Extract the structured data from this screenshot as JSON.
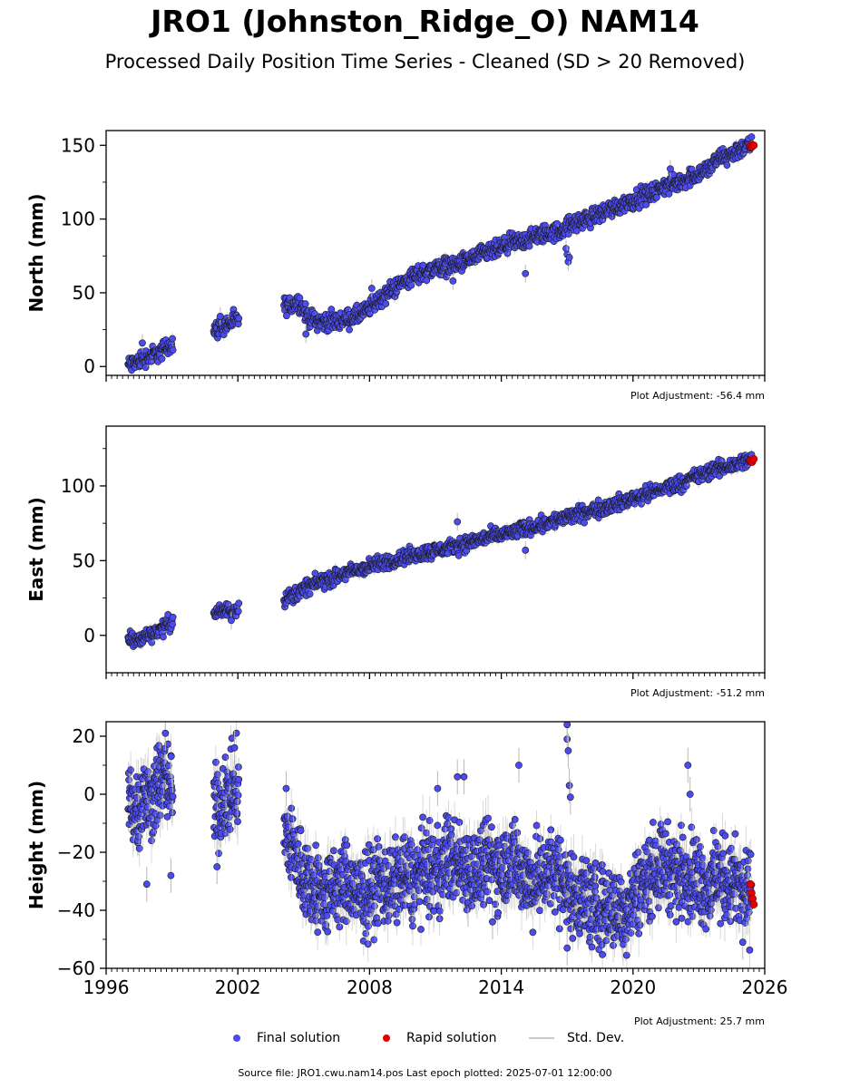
{
  "header": {
    "title": "JRO1 (Johnston_Ridge_O) NAM14",
    "subtitle": "Processed Daily Position Time Series - Cleaned (SD > 20 Removed)"
  },
  "legend": {
    "final": "Final solution",
    "rapid": "Rapid solution",
    "std": "Std. Dev."
  },
  "footer": {
    "source": "Source file: JRO1.cwu.nam14.pos  Last epoch plotted: 2025-07-01 12:00:00"
  },
  "colors": {
    "final": "#4b4bf0",
    "rapid": "#e00000",
    "std_dev": "#b8b8b8",
    "marker_edge": "#1a1a1a"
  },
  "chart_data": [
    {
      "type": "scatter",
      "ylabel": "North (mm)",
      "adjustment": "Plot Adjustment: -56.4 mm",
      "xlim": [
        1996,
        2026
      ],
      "ylim": [
        -6,
        160
      ],
      "yticks": [
        0,
        50,
        100,
        150
      ],
      "xticks": [
        1996,
        2002,
        2008,
        2014,
        2020,
        2026
      ],
      "show_xtick_labels": false,
      "noise": 3,
      "series": [
        {
          "name": "Final solution",
          "x": [
            1997.1,
            1997.4,
            1997.7,
            1998.0,
            1998.3,
            1998.6,
            1998.9,
            2001.0,
            2001.3,
            2001.6,
            2001.9,
            2004.2,
            2004.5,
            2004.8,
            2005.1,
            2005.4,
            2005.7,
            2006.0,
            2006.3,
            2006.6,
            2006.9,
            2007.2,
            2007.5,
            2007.8,
            2008.0,
            2008.5,
            2009.0,
            2009.5,
            2010.0,
            2010.5,
            2011.0,
            2011.5,
            2012.0,
            2012.5,
            2013.0,
            2013.5,
            2014.0,
            2014.5,
            2015.0,
            2015.5,
            2016.0,
            2016.5,
            2017.0,
            2017.5,
            2018.0,
            2018.5,
            2019.0,
            2019.5,
            2020.0,
            2020.5,
            2021.0,
            2021.5,
            2022.0,
            2022.5,
            2023.0,
            2023.4,
            2024.0,
            2024.3,
            2024.6,
            2024.9,
            2025.2,
            2025.4
          ],
          "y": [
            1,
            3,
            6,
            7,
            9,
            11,
            15,
            25,
            27,
            29,
            31,
            41,
            42,
            44,
            35,
            32,
            31,
            30,
            31,
            31,
            32,
            33,
            35,
            37,
            40,
            46,
            52,
            57,
            61,
            64,
            67,
            68,
            69,
            72,
            75,
            78,
            80,
            84,
            85,
            88,
            90,
            91,
            95,
            98,
            100,
            104,
            107,
            110,
            113,
            116,
            118,
            123,
            124,
            128,
            131,
            134,
            142,
            143,
            145,
            148,
            149,
            150
          ]
        },
        {
          "name": "Rapid solution",
          "x": [
            2025.35,
            2025.42,
            2025.5
          ],
          "y": [
            150,
            149,
            150
          ]
        }
      ],
      "outliers": [
        {
          "x": 1997.65,
          "y": 16
        },
        {
          "x": 2001.2,
          "y": 34
        },
        {
          "x": 2005.1,
          "y": 22
        },
        {
          "x": 2008.1,
          "y": 53
        },
        {
          "x": 2011.8,
          "y": 58
        },
        {
          "x": 2015.1,
          "y": 63
        },
        {
          "x": 2016.95,
          "y": 80
        },
        {
          "x": 2017.0,
          "y": 76
        },
        {
          "x": 2017.05,
          "y": 71
        },
        {
          "x": 2017.1,
          "y": 74
        },
        {
          "x": 2021.7,
          "y": 134
        }
      ]
    },
    {
      "type": "scatter",
      "ylabel": "East (mm)",
      "adjustment": "Plot Adjustment: -51.2 mm",
      "xlim": [
        1996,
        2026
      ],
      "ylim": [
        -25,
        140
      ],
      "yticks": [
        0,
        50,
        100
      ],
      "xticks": [
        1996,
        2002,
        2008,
        2014,
        2020,
        2026
      ],
      "show_xtick_labels": false,
      "noise": 2.5,
      "series": [
        {
          "name": "Final solution",
          "x": [
            1997.1,
            1997.4,
            1997.7,
            1998.0,
            1998.3,
            1998.6,
            1998.9,
            2001.0,
            2001.3,
            2001.6,
            2001.9,
            2004.2,
            2004.5,
            2004.8,
            2005.2,
            2005.6,
            2006.0,
            2006.5,
            2007.0,
            2007.5,
            2008.0,
            2008.5,
            2009.0,
            2009.5,
            2010.0,
            2010.5,
            2011.0,
            2011.5,
            2012.0,
            2012.5,
            2013.0,
            2013.5,
            2014.0,
            2014.5,
            2015.0,
            2015.5,
            2016.0,
            2016.5,
            2017.0,
            2017.5,
            2018.0,
            2018.5,
            2019.0,
            2019.5,
            2020.0,
            2020.5,
            2021.0,
            2021.5,
            2022.0,
            2022.5,
            2023.0,
            2023.4,
            2024.0,
            2024.3,
            2024.6,
            2024.9,
            2025.2,
            2025.4
          ],
          "y": [
            -2,
            -4,
            -1,
            1,
            3,
            5,
            9,
            15,
            16,
            17,
            18,
            25,
            27,
            29,
            33,
            35,
            37,
            39,
            42,
            44,
            46,
            48,
            50,
            52,
            54,
            55,
            57,
            58,
            60,
            62,
            64,
            66,
            67,
            69,
            71,
            73,
            75,
            77,
            79,
            81,
            83,
            85,
            87,
            89,
            92,
            94,
            96,
            99,
            101,
            104,
            107,
            109,
            112,
            113,
            114,
            116,
            117,
            118
          ]
        },
        {
          "name": "Rapid solution",
          "x": [
            2025.35,
            2025.42,
            2025.5
          ],
          "y": [
            117,
            116,
            118
          ]
        }
      ],
      "outliers": [
        {
          "x": 2012.0,
          "y": 76
        },
        {
          "x": 2015.1,
          "y": 57
        },
        {
          "x": 2001.7,
          "y": 10
        }
      ]
    },
    {
      "type": "scatter",
      "ylabel": "Height (mm)",
      "adjustment": "Plot Adjustment: 25.7 mm",
      "xlim": [
        1996,
        2026
      ],
      "ylim": [
        -60,
        25
      ],
      "yticks": [
        -60,
        -40,
        -20,
        0,
        20
      ],
      "xticks": [
        1996,
        2002,
        2008,
        2014,
        2020,
        2026
      ],
      "show_xtick_labels": true,
      "noise": 7,
      "series": [
        {
          "name": "Final solution",
          "x": [
            1997.1,
            1997.4,
            1997.7,
            1998.0,
            1998.3,
            1998.6,
            1998.9,
            2001.0,
            2001.3,
            2001.6,
            2001.9,
            2004.2,
            2004.5,
            2004.8,
            2005.2,
            2005.6,
            2006.0,
            2006.5,
            2007.0,
            2007.5,
            2008.0,
            2008.5,
            2009.0,
            2009.5,
            2010.0,
            2010.5,
            2011.0,
            2011.5,
            2012.0,
            2012.5,
            2013.0,
            2013.5,
            2014.0,
            2014.5,
            2015.0,
            2015.5,
            2016.0,
            2016.5,
            2017.0,
            2017.5,
            2018.0,
            2018.5,
            2019.0,
            2019.5,
            2020.0,
            2020.5,
            2021.0,
            2021.5,
            2022.0,
            2022.5,
            2023.0,
            2023.4,
            2024.0,
            2024.3,
            2024.6,
            2024.9,
            2025.2,
            2025.4
          ],
          "y": [
            -2,
            -5,
            0,
            -3,
            3,
            6,
            2,
            -5,
            -3,
            0,
            2,
            -15,
            -18,
            -25,
            -30,
            -33,
            -35,
            -32,
            -30,
            -36,
            -33,
            -30,
            -32,
            -28,
            -30,
            -25,
            -28,
            -22,
            -24,
            -25,
            -27,
            -23,
            -25,
            -22,
            -28,
            -30,
            -27,
            -25,
            -33,
            -35,
            -37,
            -40,
            -38,
            -42,
            -35,
            -30,
            -25,
            -24,
            -28,
            -26,
            -30,
            -32,
            -28,
            -31,
            -30,
            -33,
            -35,
            -34
          ]
        },
        {
          "name": "Rapid solution",
          "x": [
            2025.35,
            2025.4,
            2025.45,
            2025.5
          ],
          "y": [
            -31,
            -34,
            -36,
            -38
          ]
        }
      ],
      "outliers": [
        {
          "x": 1997.85,
          "y": -31
        },
        {
          "x": 1998.7,
          "y": 21
        },
        {
          "x": 1998.95,
          "y": -28
        },
        {
          "x": 2001.05,
          "y": -25
        },
        {
          "x": 2001.85,
          "y": 16
        },
        {
          "x": 2004.2,
          "y": 2
        },
        {
          "x": 2011.1,
          "y": 2
        },
        {
          "x": 2012.0,
          "y": 6
        },
        {
          "x": 2012.3,
          "y": 6
        },
        {
          "x": 2014.8,
          "y": 10
        },
        {
          "x": 2017.0,
          "y": 19
        },
        {
          "x": 2017.05,
          "y": 15
        },
        {
          "x": 2017.0,
          "y": 24
        },
        {
          "x": 2017.1,
          "y": 3
        },
        {
          "x": 2017.15,
          "y": -1
        },
        {
          "x": 2022.5,
          "y": 10
        },
        {
          "x": 2022.6,
          "y": 0
        },
        {
          "x": 2025.0,
          "y": -51
        },
        {
          "x": 2013.6,
          "y": -44
        },
        {
          "x": 2017.0,
          "y": -53
        }
      ]
    }
  ]
}
